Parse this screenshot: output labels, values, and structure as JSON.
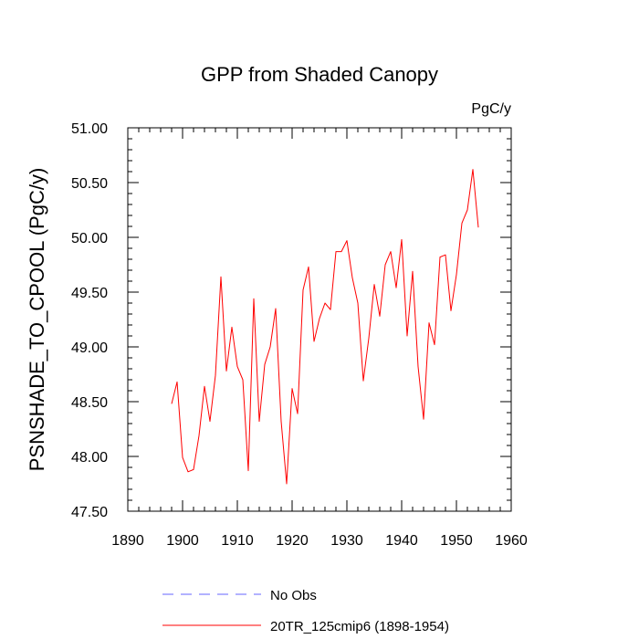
{
  "chart_data": {
    "type": "line",
    "title": "GPP from Shaded Canopy",
    "units": "PgC/y",
    "xlabel": "",
    "ylabel": "PSNSHADE_TO_CPOOL  (PgC/y)",
    "xlim": [
      1890,
      1960
    ],
    "ylim": [
      47.5,
      51.0
    ],
    "xticks": [
      1890,
      1900,
      1910,
      1920,
      1930,
      1940,
      1950,
      1960
    ],
    "yticks": [
      47.5,
      48.0,
      48.5,
      49.0,
      49.5,
      50.0,
      50.5,
      51.0
    ],
    "ytick_labels": [
      "47.50",
      "48.00",
      "48.50",
      "49.00",
      "49.50",
      "50.00",
      "50.50",
      "51.00"
    ],
    "grid": false,
    "legend_position": "bottom",
    "series": [
      {
        "name": "No Obs",
        "color": "#6666ff",
        "style": "dashed",
        "x": [],
        "values": []
      },
      {
        "name": "20TR_125cmip6 (1898-1954)",
        "color": "#ff0000",
        "style": "solid",
        "x": [
          1898,
          1899,
          1900,
          1901,
          1902,
          1903,
          1904,
          1905,
          1906,
          1907,
          1908,
          1909,
          1910,
          1911,
          1912,
          1913,
          1914,
          1915,
          1916,
          1917,
          1918,
          1919,
          1920,
          1921,
          1922,
          1923,
          1924,
          1925,
          1926,
          1927,
          1928,
          1929,
          1930,
          1931,
          1932,
          1933,
          1934,
          1935,
          1936,
          1937,
          1938,
          1939,
          1940,
          1941,
          1942,
          1943,
          1944,
          1945,
          1946,
          1947,
          1948,
          1949,
          1950,
          1951,
          1952,
          1953,
          1954
        ],
        "values": [
          48.48,
          48.68,
          47.99,
          47.86,
          47.88,
          48.19,
          48.64,
          48.32,
          48.74,
          49.64,
          48.78,
          49.18,
          48.82,
          48.7,
          47.87,
          49.44,
          48.32,
          48.84,
          49.0,
          49.35,
          48.32,
          47.75,
          48.62,
          48.39,
          49.52,
          49.73,
          49.05,
          49.26,
          49.4,
          49.34,
          49.87,
          49.87,
          49.97,
          49.63,
          49.4,
          48.69,
          49.08,
          49.57,
          49.28,
          49.75,
          49.87,
          49.54,
          49.98,
          49.1,
          49.69,
          48.82,
          48.34,
          49.22,
          49.02,
          49.82,
          49.84,
          49.33,
          49.66,
          50.13,
          50.25,
          50.62,
          50.09
        ]
      }
    ]
  }
}
